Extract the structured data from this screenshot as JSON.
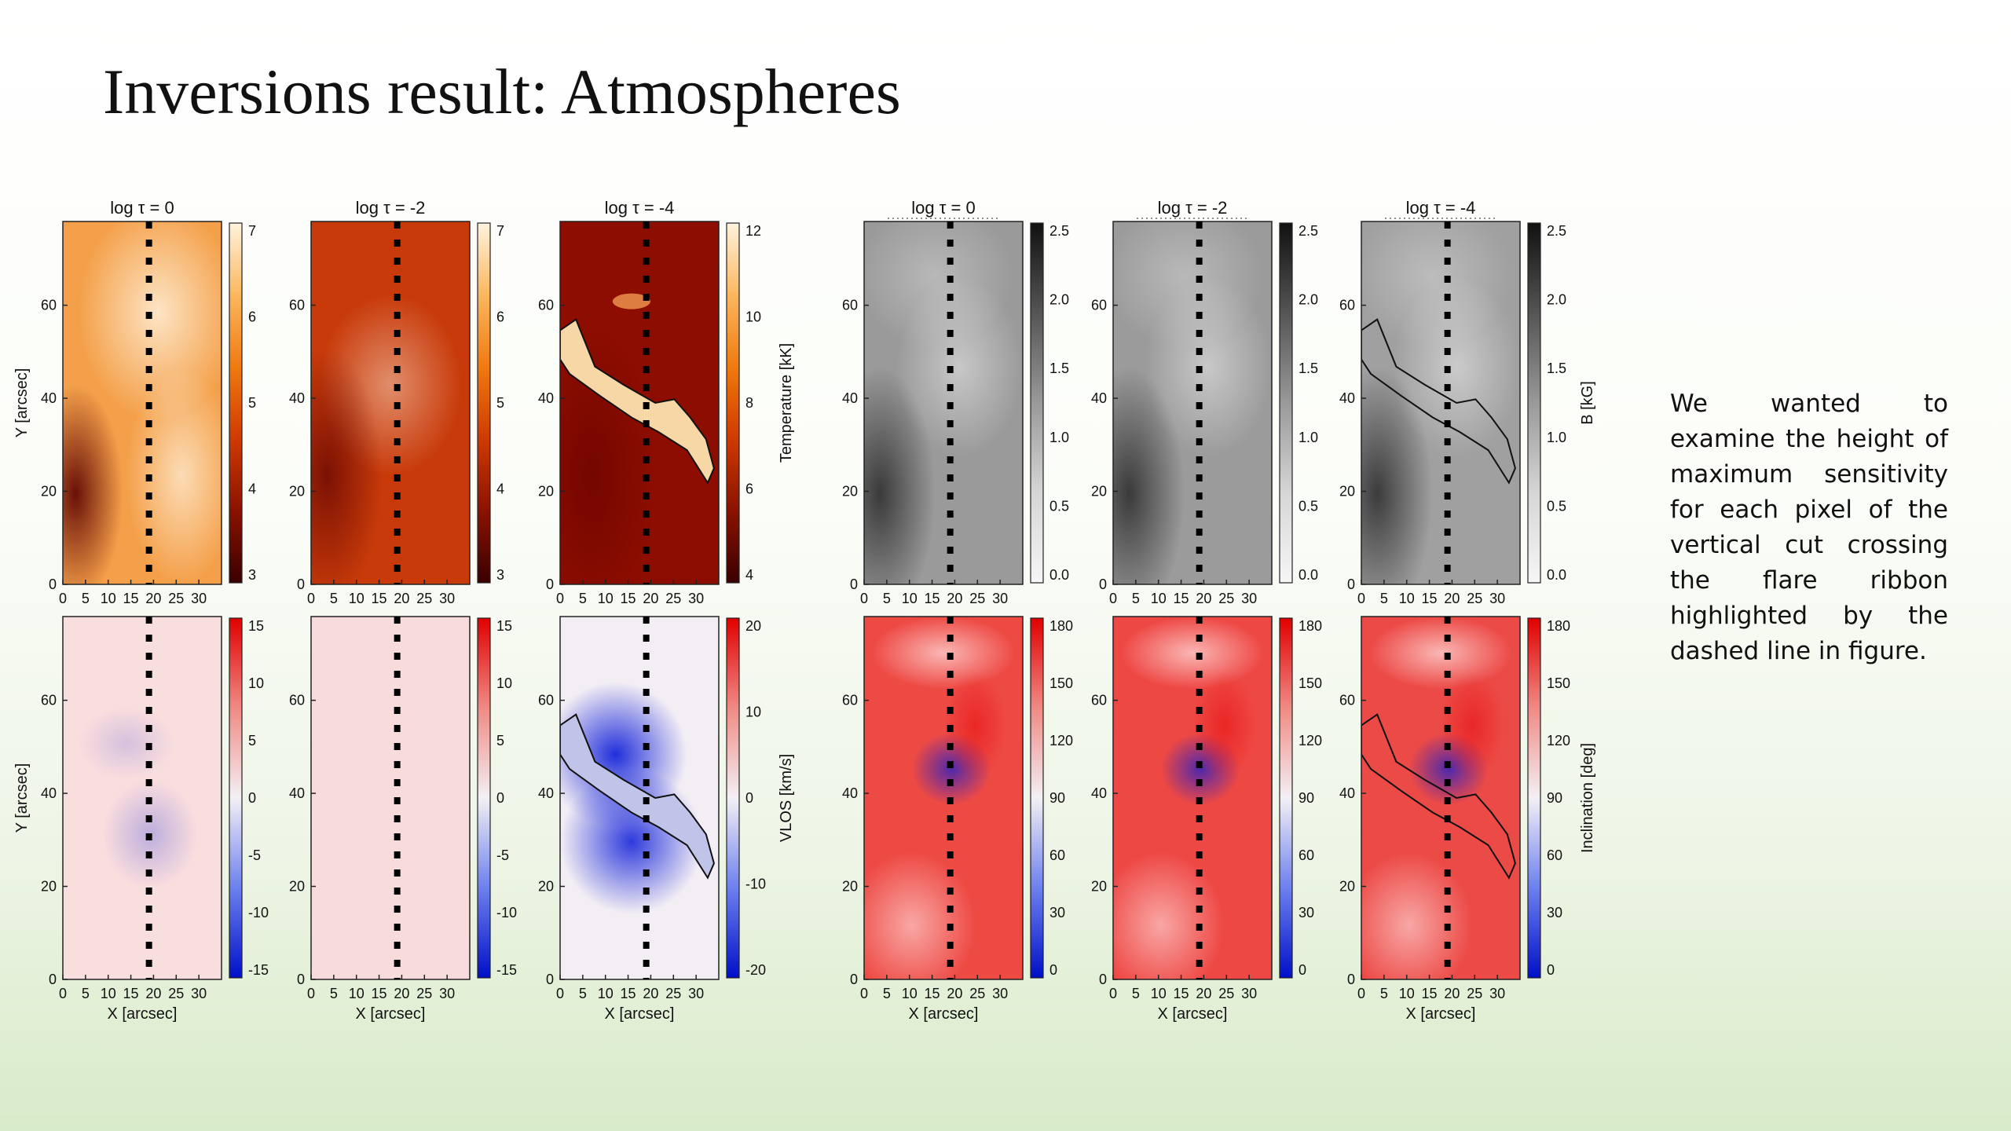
{
  "slide": {
    "title": "Inversions result: Atmospheres",
    "description": "We wanted to examine the height of maximum sensitivity for each pixel of the vertical cut crossing the flare ribbon highlighted by the dashed line in figure."
  },
  "figure": {
    "column_titles": [
      "log τ = 0",
      "log τ = -2",
      "log τ = -4"
    ],
    "x_ticks": [
      "0",
      "5",
      "10",
      "15",
      "20",
      "25",
      "30"
    ],
    "y_ticks": [
      "0",
      "20",
      "40",
      "60"
    ],
    "x_label": "X [arcsec]",
    "y_label": "Y [arcsec]",
    "cut_x_arcsec": 19,
    "panel_groups": [
      {
        "id": "temperature",
        "colormap": "heat",
        "colorbar_label": "Temperature [kK]",
        "colorbars": [
          {
            "ticks": [
              "7",
              "6",
              "5",
              "4",
              "3"
            ]
          },
          {
            "ticks": [
              "7",
              "6",
              "5",
              "4",
              "3"
            ]
          },
          {
            "ticks": [
              "12",
              "10",
              "8",
              "6",
              "4"
            ]
          }
        ]
      },
      {
        "id": "field",
        "colormap": "gray",
        "colorbar_label": "B [kG]",
        "colorbars": [
          {
            "ticks": [
              "2.5",
              "2.0",
              "1.5",
              "1.0",
              "0.5",
              "0.0"
            ]
          },
          {
            "ticks": [
              "2.5",
              "2.0",
              "1.5",
              "1.0",
              "0.5",
              "0.0"
            ]
          },
          {
            "ticks": [
              "2.5",
              "2.0",
              "1.5",
              "1.0",
              "0.5",
              "0.0"
            ]
          }
        ]
      },
      {
        "id": "velocity",
        "colormap": "bwr",
        "colorbar_label": "VLOS [km/s]",
        "colorbars": [
          {
            "ticks": [
              "15",
              "10",
              "5",
              "0",
              "-5",
              "-10",
              "-15"
            ]
          },
          {
            "ticks": [
              "15",
              "10",
              "5",
              "0",
              "-5",
              "-10",
              "-15"
            ]
          },
          {
            "ticks": [
              "20",
              "10",
              "0",
              "-10",
              "-20"
            ]
          }
        ]
      },
      {
        "id": "inclination",
        "colormap": "bwr",
        "colorbar_label": "Inclination [deg]",
        "colorbars": [
          {
            "ticks": [
              "180",
              "150",
              "120",
              "90",
              "60",
              "30",
              "0"
            ]
          },
          {
            "ticks": [
              "180",
              "150",
              "120",
              "90",
              "60",
              "30",
              "0"
            ]
          },
          {
            "ticks": [
              "180",
              "150",
              "120",
              "90",
              "60",
              "30",
              "0"
            ]
          }
        ]
      }
    ]
  },
  "colors": {
    "heat": [
      "#3a0000",
      "#8b1200",
      "#cf3a00",
      "#f07a10",
      "#fbb75e",
      "#fff3de"
    ],
    "gray": [
      "#111111",
      "#555555",
      "#999999",
      "#d6d6d6",
      "#f6f6f6"
    ],
    "bwr": [
      "#0010c8",
      "#6d80ee",
      "#f3f0f4",
      "#f08a84",
      "#e00000"
    ]
  }
}
